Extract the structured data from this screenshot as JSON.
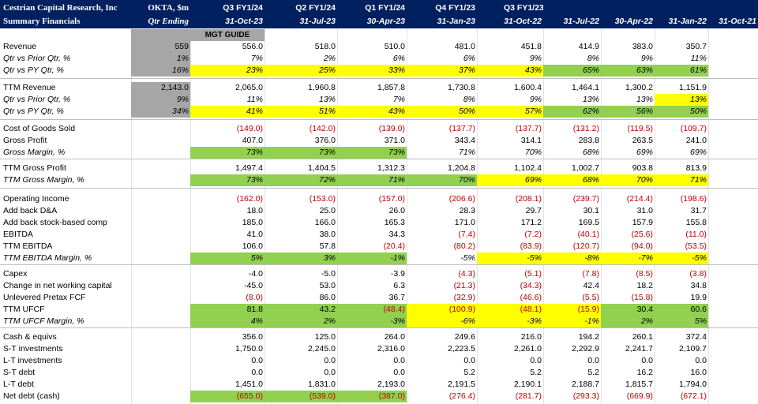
{
  "header": {
    "company": "Cestrian Capital Research, Inc",
    "subtitle": "Summary Financials",
    "ticker": "OKTA, $m",
    "qtr_ending": "Qtr Ending",
    "periods": [
      "Q3 FY1/24",
      "Q2 FY1/24",
      "Q1 FY1/24",
      "Q4 FY1/23",
      "Q3 FY1/23",
      "",
      "",
      "",
      ""
    ],
    "dates": [
      "31-Oct-23",
      "31-Jul-23",
      "30-Apr-23",
      "31-Jan-23",
      "31-Oct-22",
      "31-Jul-22",
      "30-Apr-22",
      "31-Jan-22",
      "31-Oct-21"
    ],
    "mgt_guide": "MGT GUIDE"
  },
  "rows": [
    {
      "label": "Revenue",
      "values": [
        "559",
        "556.0",
        "518.0",
        "510.0",
        "481.0",
        "451.8",
        "414.9",
        "383.0",
        "350.7"
      ]
    },
    {
      "label": "Qtr vs Prior Qtr, %",
      "values": [
        "1%",
        "7%",
        "2%",
        "6%",
        "6%",
        "9%",
        "8%",
        "9%",
        "11%"
      ]
    },
    {
      "label": "Qtr vs PY Qtr, %",
      "values": [
        "16%",
        "23%",
        "25%",
        "33%",
        "37%",
        "43%",
        "65%",
        "63%",
        "61%"
      ]
    },
    {
      "label": "TTM Revenue",
      "values": [
        "2,143.0",
        "2,065.0",
        "1,960.8",
        "1,857.8",
        "1,730.8",
        "1,600.4",
        "1,464.1",
        "1,300.2",
        "1,151.9"
      ]
    },
    {
      "label": "Qtr vs Prior Qtr, %",
      "values": [
        "9%",
        "11%",
        "13%",
        "7%",
        "8%",
        "9%",
        "13%",
        "13%",
        "13%"
      ]
    },
    {
      "label": "Qtr vs PY Qtr, %",
      "values": [
        "34%",
        "41%",
        "51%",
        "43%",
        "50%",
        "57%",
        "62%",
        "56%",
        "50%"
      ]
    },
    {
      "label": "Cost of Goods Sold",
      "values": [
        "",
        "(149.0)",
        "(142.0)",
        "(139.0)",
        "(137.7)",
        "(137.7)",
        "(131.2)",
        "(119.5)",
        "(109.7)"
      ]
    },
    {
      "label": "Gross Profit",
      "values": [
        "",
        "407.0",
        "376.0",
        "371.0",
        "343.4",
        "314.1",
        "283.8",
        "263.5",
        "241.0"
      ]
    },
    {
      "label": "Gross Margin, %",
      "values": [
        "",
        "73%",
        "73%",
        "73%",
        "71%",
        "70%",
        "68%",
        "69%",
        "69%"
      ]
    },
    {
      "label": "TTM Gross Profit",
      "values": [
        "",
        "1,497.4",
        "1,404.5",
        "1,312.3",
        "1,204.8",
        "1,102.4",
        "1,002.7",
        "903.8",
        "813.9"
      ]
    },
    {
      "label": "TTM Gross Margin, %",
      "values": [
        "",
        "73%",
        "72%",
        "71%",
        "70%",
        "69%",
        "68%",
        "70%",
        "71%"
      ]
    },
    {
      "label": "Operating Income",
      "values": [
        "",
        "(162.0)",
        "(153.0)",
        "(157.0)",
        "(206.6)",
        "(208.1)",
        "(239.7)",
        "(214.4)",
        "(198.6)"
      ]
    },
    {
      "label": "Add back D&A",
      "values": [
        "",
        "18.0",
        "25.0",
        "26.0",
        "28.3",
        "29.7",
        "30.1",
        "31.0",
        "31.7"
      ]
    },
    {
      "label": "Add back stock-based comp",
      "values": [
        "",
        "185.0",
        "166.0",
        "165.3",
        "171.0",
        "171.2",
        "169.5",
        "157.9",
        "155.8"
      ]
    },
    {
      "label": "EBITDA",
      "values": [
        "",
        "41.0",
        "38.0",
        "34.3",
        "(7.4)",
        "(7.2)",
        "(40.1)",
        "(25.6)",
        "(11.0)"
      ]
    },
    {
      "label": "TTM EBITDA",
      "values": [
        "",
        "106.0",
        "57.8",
        "(20.4)",
        "(80.2)",
        "(83.9)",
        "(120.7)",
        "(94.0)",
        "(53.5)"
      ]
    },
    {
      "label": "TTM EBITDA Margin, %",
      "values": [
        "",
        "5%",
        "3%",
        "-1%",
        "-5%",
        "-5%",
        "-8%",
        "-7%",
        "-5%"
      ]
    },
    {
      "label": "Capex",
      "values": [
        "",
        "-4.0",
        "-5.0",
        "-3.9",
        "(4.3)",
        "(5.1)",
        "(7.8)",
        "(8.5)",
        "(3.8)"
      ]
    },
    {
      "label": "Change in net working capital",
      "values": [
        "",
        "-45.0",
        "53.0",
        "6.3",
        "(21.3)",
        "(34.3)",
        "42.4",
        "18.2",
        "34.8"
      ]
    },
    {
      "label": "Unlevered Pretax FCF",
      "values": [
        "",
        "(8.0)",
        "86.0",
        "36.7",
        "(32.9)",
        "(46.6)",
        "(5.5)",
        "(15.8)",
        "19.9"
      ]
    },
    {
      "label": "TTM UFCF",
      "values": [
        "",
        "81.8",
        "43.2",
        "(48.4)",
        "(100.9)",
        "(48.1)",
        "(15.9)",
        "30.4",
        "60.6"
      ]
    },
    {
      "label": "TTM UFCF Margin, %",
      "values": [
        "",
        "4%",
        "2%",
        "-3%",
        "-6%",
        "-3%",
        "-1%",
        "2%",
        "5%"
      ]
    },
    {
      "label": "Cash & equivs",
      "values": [
        "",
        "356.0",
        "125.0",
        "264.0",
        "249.6",
        "216.0",
        "194.2",
        "260.1",
        "372.4"
      ]
    },
    {
      "label": "S-T investments",
      "values": [
        "",
        "1,750.0",
        "2,245.0",
        "2,316.0",
        "2,223.5",
        "2,261.0",
        "2,292.9",
        "2,241.7",
        "2,109.7"
      ]
    },
    {
      "label": "L-T investments",
      "values": [
        "",
        "0.0",
        "0.0",
        "0.0",
        "0.0",
        "0.0",
        "0.0",
        "0.0",
        "0.0"
      ]
    },
    {
      "label": "S-T debt",
      "values": [
        "",
        "0.0",
        "0.0",
        "0.0",
        "5.2",
        "5.2",
        "5.2",
        "16.2",
        "16.0"
      ]
    },
    {
      "label": "L-T debt",
      "values": [
        "",
        "1,451.0",
        "1,831.0",
        "2,193.0",
        "2,191.5",
        "2,190.1",
        "2,188.7",
        "1,815.7",
        "1,794.0"
      ]
    },
    {
      "label": "Net debt (cash)",
      "values": [
        "",
        "(655.0)",
        "(539.0)",
        "(387.0)",
        "(276.4)",
        "(281.7)",
        "(293.3)",
        "(669.9)",
        "(672.1)"
      ]
    }
  ],
  "colors": {
    "header_bg": "#002060",
    "guide_gray": "#a6a6a6",
    "highlight_green": "#92d050",
    "highlight_yellow": "#ffff00",
    "negative_red": "#c00000"
  }
}
